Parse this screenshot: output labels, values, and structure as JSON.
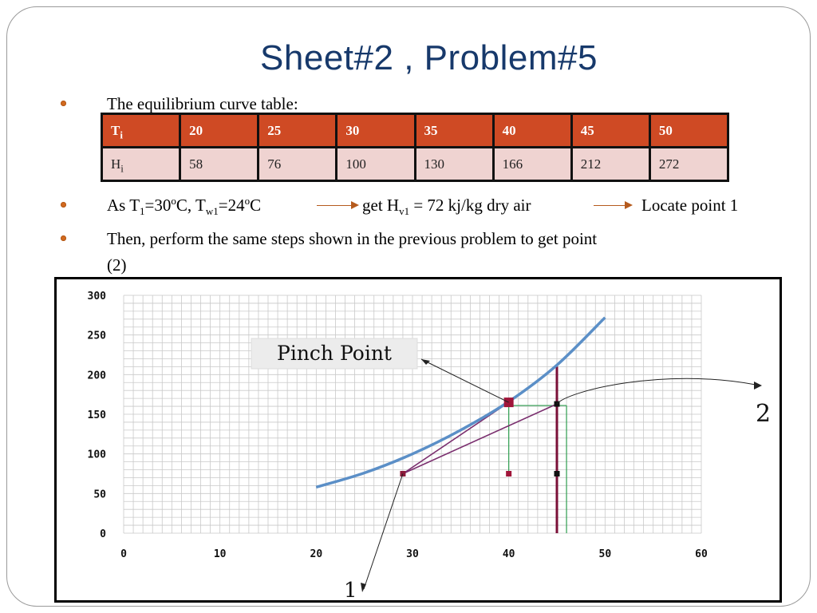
{
  "slide": {
    "title": "Sheet#2 , Problem#5",
    "bullet1": "The equilibrium curve table:",
    "bullet2": {
      "part_a": "As T",
      "sub1": "1",
      "part_b": "=30",
      "sup1": "o",
      "part_c": "C, T",
      "sub2": "w1",
      "part_d": "=24",
      "sup2": "o",
      "part_e": "C",
      "part_f": "get H",
      "sub3": "v1",
      "part_g": " = 72 kj/kg dry air",
      "part_h": "Locate point 1"
    },
    "bullet3_line1": "Then, perform the same steps shown in the previous problem to get point",
    "bullet3_line2": "(2)"
  },
  "table": {
    "row_t": {
      "label": "T",
      "label_sub": "i",
      "values": [
        "20",
        "25",
        "30",
        "35",
        "40",
        "45",
        "50"
      ]
    },
    "row_h": {
      "label": "H",
      "label_sub": "i",
      "values": [
        "58",
        "76",
        "100",
        "130",
        "166",
        "212",
        "272"
      ]
    }
  },
  "colors": {
    "title": "#17396b",
    "bullet": "#d2691e",
    "table_header": "#cf4a24",
    "table_row": "#efd3d1",
    "curve": "#5b8fc7",
    "operating_line": "#7a2e6e",
    "vertical_line": "#7b1038",
    "green_line": "#2e9e4f"
  },
  "chart_data": {
    "type": "line",
    "xlim": [
      0,
      60
    ],
    "ylim": [
      0,
      300
    ],
    "x_ticks": [
      "0",
      "10",
      "20",
      "30",
      "40",
      "50",
      "60"
    ],
    "y_ticks": [
      "0",
      "50",
      "100",
      "150",
      "200",
      "250",
      "300"
    ],
    "grid": true,
    "series": [
      {
        "x": [
          20,
          25,
          30,
          35,
          40,
          45,
          50
        ],
        "y": [
          58,
          76,
          100,
          130,
          166,
          212,
          272
        ]
      }
    ],
    "annotations": {
      "pinch_point": "Pinch Point",
      "point_1": "1",
      "point_2": "2"
    },
    "markers": [
      {
        "x": 29,
        "y": 75
      },
      {
        "x": 40,
        "y": 165
      },
      {
        "x": 40,
        "y": 75
      },
      {
        "x": 45,
        "y": 163
      },
      {
        "x": 45,
        "y": 75
      }
    ]
  }
}
